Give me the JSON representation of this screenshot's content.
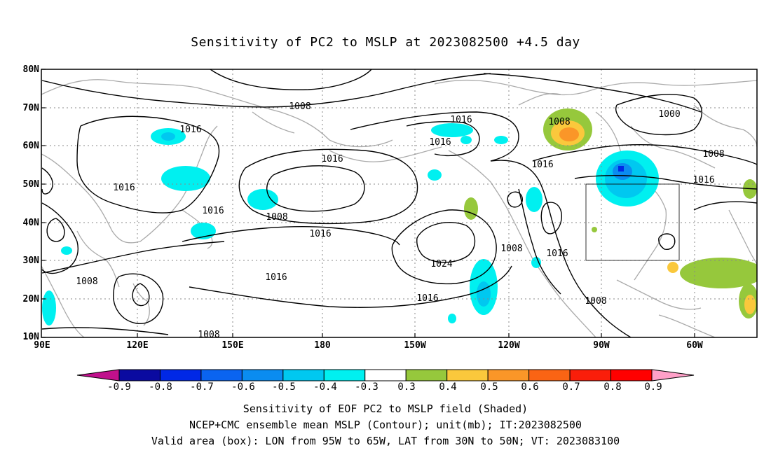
{
  "title": "Sensitivity of PC2 to MSLP at 2023082500 +4.5 day",
  "axes": {
    "lat_ticks": [
      "80N",
      "70N",
      "60N",
      "50N",
      "40N",
      "30N",
      "20N",
      "10N"
    ],
    "lon_ticks": [
      "90E",
      "120E",
      "150E",
      "180",
      "150W",
      "120W",
      "90W",
      "60W"
    ]
  },
  "contour_labels": [
    "1008",
    "1016",
    "1016",
    "1016",
    "1016",
    "1008",
    "1008",
    "1016",
    "1016",
    "1024",
    "1016",
    "1016",
    "1008",
    "1016",
    "1008",
    "1016",
    "1000",
    "1008",
    "1016",
    "1008",
    "1008"
  ],
  "box": {
    "lon_range": "95W to 65W",
    "lat_range": "30N to 50N"
  },
  "colorbar": {
    "labels": [
      "-0.9",
      "-0.8",
      "-0.7",
      "-0.6",
      "-0.5",
      "-0.4",
      "-0.3",
      "0.3",
      "0.4",
      "0.5",
      "0.6",
      "0.7",
      "0.8",
      "0.9"
    ],
    "colors": [
      "#0a0aa0",
      "#0028e6",
      "#0a64f0",
      "#0a8cf0",
      "#00c8f0",
      "#00f0f0",
      "#ffffff",
      "#96c83c",
      "#fac83c",
      "#fa9628",
      "#fa6414",
      "#fa1e0a",
      "#ff0000"
    ],
    "end_low": "#c0108c",
    "end_high": "#ffa0c8"
  },
  "footer": {
    "line1": "Sensitivity of EOF PC2 to MSLP field (Shaded)",
    "line2": "NCEP+CMC ensemble mean MSLP (Contour); unit(mb); IT:2023082500",
    "line3": "Valid area (box): LON from 95W to 65W, LAT from 30N to 50N; VT: 2023083100"
  }
}
